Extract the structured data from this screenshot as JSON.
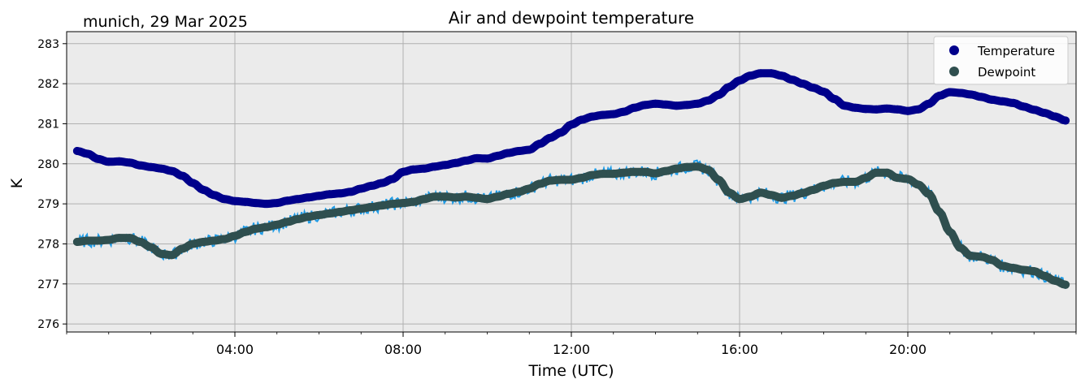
{
  "chart_data": {
    "type": "line",
    "title": "Air and dewpoint temperature",
    "subtitle": "munich, 29 Mar 2025",
    "xlabel": "Time (UTC)",
    "ylabel": "K",
    "xlim": [
      0,
      24
    ],
    "ylim": [
      275.8,
      283.3
    ],
    "x_ticks": [
      4,
      8,
      12,
      16,
      20
    ],
    "x_tick_labels": [
      "04:00",
      "08:00",
      "12:00",
      "16:00",
      "20:00"
    ],
    "y_ticks": [
      276,
      277,
      278,
      279,
      280,
      281,
      282,
      283
    ],
    "y_tick_labels": [
      "276",
      "277",
      "278",
      "279",
      "280",
      "281",
      "282",
      "283"
    ],
    "grid": true,
    "legend_position": "top-right",
    "series": [
      {
        "name": "Temperature",
        "color": "#00008b",
        "raw_color": "#8fb3a8",
        "marker": "circle",
        "x": [
          0.25,
          0.5,
          0.75,
          1,
          1.25,
          1.5,
          1.75,
          2,
          2.25,
          2.5,
          2.75,
          3,
          3.25,
          3.5,
          3.75,
          4,
          4.25,
          4.5,
          4.75,
          5,
          5.25,
          5.5,
          5.75,
          6,
          6.25,
          6.5,
          6.75,
          7,
          7.25,
          7.5,
          7.75,
          8,
          8.25,
          8.5,
          8.75,
          9,
          9.25,
          9.5,
          9.75,
          10,
          10.25,
          10.5,
          10.75,
          11,
          11.25,
          11.5,
          11.75,
          12,
          12.25,
          12.5,
          12.75,
          13,
          13.25,
          13.5,
          13.75,
          14,
          14.25,
          14.5,
          14.75,
          15,
          15.25,
          15.5,
          15.75,
          16,
          16.25,
          16.5,
          16.75,
          17,
          17.25,
          17.5,
          17.75,
          18,
          18.25,
          18.5,
          18.75,
          19,
          19.25,
          19.5,
          19.75,
          20,
          20.25,
          20.5,
          20.75,
          21,
          21.25,
          21.5,
          21.75,
          22,
          22.25,
          22.5,
          22.75,
          23,
          23.25,
          23.5,
          23.75
        ],
        "y": [
          280.32,
          280.25,
          280.12,
          280.05,
          280.06,
          280.03,
          279.96,
          279.92,
          279.88,
          279.82,
          279.7,
          279.52,
          279.35,
          279.22,
          279.12,
          279.07,
          279.05,
          279.02,
          279.0,
          279.02,
          279.08,
          279.12,
          279.16,
          279.2,
          279.24,
          279.26,
          279.3,
          279.38,
          279.45,
          279.52,
          279.62,
          279.8,
          279.86,
          279.88,
          279.93,
          279.97,
          280.02,
          280.08,
          280.14,
          280.13,
          280.2,
          280.27,
          280.32,
          280.35,
          280.5,
          280.65,
          280.78,
          280.98,
          281.1,
          281.18,
          281.22,
          281.24,
          281.3,
          281.4,
          281.47,
          281.5,
          281.48,
          281.45,
          281.47,
          281.5,
          281.58,
          281.72,
          281.92,
          282.08,
          282.2,
          282.26,
          282.26,
          282.2,
          282.1,
          282.0,
          281.9,
          281.8,
          281.62,
          281.45,
          281.4,
          281.37,
          281.36,
          281.38,
          281.36,
          281.32,
          281.36,
          281.5,
          281.7,
          281.79,
          281.77,
          281.73,
          281.67,
          281.6,
          281.56,
          281.52,
          281.43,
          281.35,
          281.27,
          281.18,
          281.08
        ]
      },
      {
        "name": "Dewpoint",
        "color": "#2f4f4f",
        "raw_color": "#1e9be6",
        "marker": "circle",
        "x": [
          0.25,
          0.5,
          0.75,
          1,
          1.25,
          1.5,
          1.75,
          2,
          2.25,
          2.5,
          2.75,
          3,
          3.25,
          3.5,
          3.75,
          4,
          4.25,
          4.5,
          4.75,
          5,
          5.25,
          5.5,
          5.75,
          6,
          6.25,
          6.5,
          6.75,
          7,
          7.25,
          7.5,
          7.75,
          8,
          8.25,
          8.5,
          8.75,
          9,
          9.25,
          9.5,
          9.75,
          10,
          10.25,
          10.5,
          10.75,
          11,
          11.25,
          11.5,
          11.75,
          12,
          12.25,
          12.5,
          12.75,
          13,
          13.25,
          13.5,
          13.75,
          14,
          14.25,
          14.5,
          14.75,
          15,
          15.25,
          15.5,
          15.75,
          16,
          16.25,
          16.5,
          16.75,
          17,
          17.25,
          17.5,
          17.75,
          18,
          18.25,
          18.5,
          18.75,
          19,
          19.25,
          19.5,
          19.75,
          20,
          20.25,
          20.5,
          20.75,
          21,
          21.25,
          21.5,
          21.75,
          22,
          22.25,
          22.5,
          22.75,
          23,
          23.25,
          23.5,
          23.75
        ],
        "y": [
          278.05,
          278.08,
          278.08,
          278.1,
          278.15,
          278.15,
          278.05,
          277.92,
          277.75,
          277.72,
          277.88,
          278.0,
          278.05,
          278.08,
          278.12,
          278.2,
          278.3,
          278.38,
          278.42,
          278.48,
          278.55,
          278.62,
          278.68,
          278.72,
          278.76,
          278.8,
          278.84,
          278.88,
          278.92,
          278.96,
          279.0,
          279.02,
          279.05,
          279.12,
          279.18,
          279.18,
          279.16,
          279.18,
          279.15,
          279.12,
          279.18,
          279.25,
          279.3,
          279.38,
          279.5,
          279.58,
          279.6,
          279.6,
          279.65,
          279.72,
          279.75,
          279.75,
          279.78,
          279.8,
          279.8,
          279.76,
          279.82,
          279.88,
          279.92,
          279.93,
          279.85,
          279.6,
          279.28,
          279.12,
          279.18,
          279.28,
          279.22,
          279.15,
          279.2,
          279.27,
          279.35,
          279.45,
          279.52,
          279.55,
          279.55,
          279.65,
          279.78,
          279.78,
          279.65,
          279.62,
          279.48,
          279.25,
          278.8,
          278.3,
          277.9,
          277.7,
          277.68,
          277.6,
          277.45,
          277.4,
          277.35,
          277.32,
          277.2,
          277.08,
          276.98
        ]
      }
    ]
  }
}
